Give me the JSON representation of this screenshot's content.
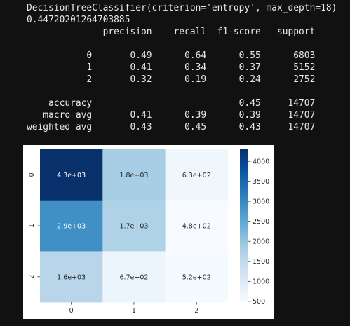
{
  "output_lines": [
    "DecisionTreeClassifier(criterion='entropy', max_depth=18)",
    "0.44720201264703885",
    "              precision    recall  f1-score   support",
    "",
    "           0       0.49      0.64      0.55      6803",
    "           1       0.41      0.34      0.37      5152",
    "           2       0.32      0.19      0.24      2752",
    "",
    "    accuracy                           0.45     14707",
    "   macro avg       0.41      0.39      0.39     14707",
    "weighted avg       0.43      0.45      0.43     14707"
  ],
  "chart_data": {
    "type": "heatmap",
    "x_tick_labels": [
      "0",
      "1",
      "2"
    ],
    "y_tick_labels": [
      "0",
      "1",
      "2"
    ],
    "values": [
      [
        4300,
        1800,
        630
      ],
      [
        2900,
        1700,
        480
      ],
      [
        1600,
        670,
        520
      ]
    ],
    "annotations": [
      [
        "4.3e+03",
        "1.8e+03",
        "6.3e+02"
      ],
      [
        "2.9e+03",
        "1.7e+03",
        "4.8e+02"
      ],
      [
        "1.6e+03",
        "6.7e+02",
        "5.2e+02"
      ]
    ],
    "colorbar_ticks": [
      500,
      1000,
      1500,
      2000,
      2500,
      3000,
      3500,
      4000
    ],
    "colorbar_range": [
      480,
      4300
    ],
    "colormap": "Blues",
    "colormap_stops": [
      "#f7fbff",
      "#deebf7",
      "#c6dbef",
      "#9ecae1",
      "#6baed6",
      "#4292c6",
      "#2171b5",
      "#08519c",
      "#08306b"
    ]
  }
}
